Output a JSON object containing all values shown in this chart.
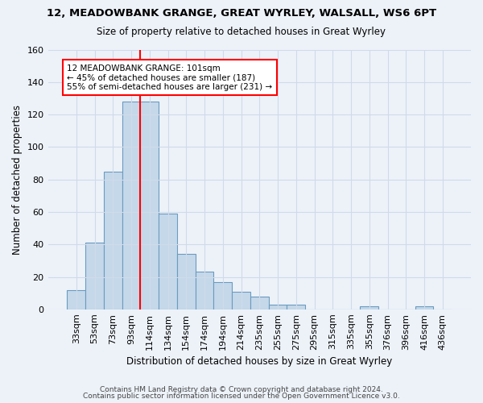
{
  "title": "12, MEADOWBANK GRANGE, GREAT WYRLEY, WALSALL, WS6 6PT",
  "subtitle": "Size of property relative to detached houses in Great Wyrley",
  "xlabel": "Distribution of detached houses by size in Great Wyrley",
  "ylabel": "Number of detached properties",
  "bar_labels": [
    "33sqm",
    "53sqm",
    "73sqm",
    "93sqm",
    "114sqm",
    "134sqm",
    "154sqm",
    "174sqm",
    "194sqm",
    "214sqm",
    "235sqm",
    "255sqm",
    "275sqm",
    "295sqm",
    "315sqm",
    "335sqm",
    "355sqm",
    "376sqm",
    "396sqm",
    "416sqm",
    "436sqm"
  ],
  "bar_values": [
    12,
    41,
    85,
    128,
    128,
    59,
    34,
    23,
    17,
    11,
    8,
    3,
    3,
    0,
    0,
    0,
    2,
    0,
    0,
    2,
    0
  ],
  "bar_color": "#c5d8ea",
  "bar_edge_color": "#6a9bbf",
  "grid_color": "#d0daea",
  "background_color": "#edf2f9",
  "red_line_x": 3.5,
  "annotation_line1": "12 MEADOWBANK GRANGE: 101sqm",
  "annotation_line2": "← 45% of detached houses are smaller (187)",
  "annotation_line3": "55% of semi-detached houses are larger (231) →",
  "footer_line1": "Contains HM Land Registry data © Crown copyright and database right 2024.",
  "footer_line2": "Contains public sector information licensed under the Open Government Licence v3.0.",
  "ylim": [
    0,
    160
  ],
  "yticks": [
    0,
    20,
    40,
    60,
    80,
    100,
    120,
    140,
    160
  ]
}
